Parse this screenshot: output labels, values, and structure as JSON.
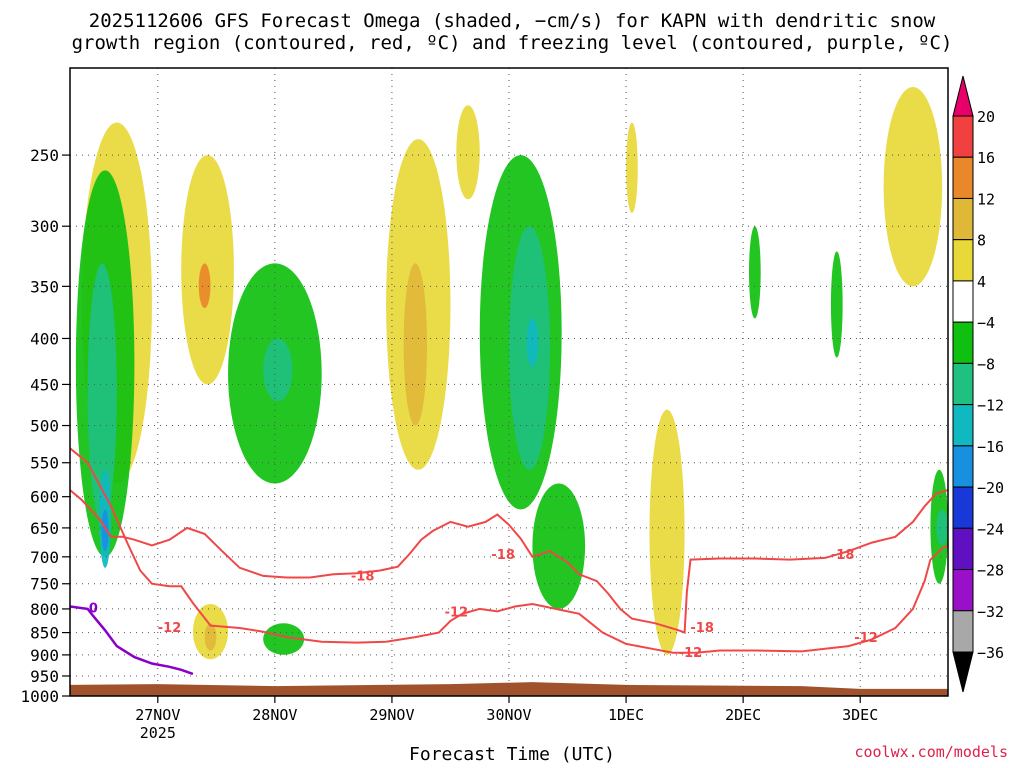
{
  "title_line1": "2025112606 GFS Forecast Omega (shaded, −cm/s) for KAPN with dendritic snow",
  "title_line2": "growth region (contoured, red, ºC) and freezing level (contoured, purple, ºC)",
  "xlabel": "Forecast Time (UTC)",
  "credit": "coolwx.com/models",
  "colors": {
    "ground": "#a0522d",
    "dgz_contour": "#f04848",
    "freezing_contour": "#8a00c8",
    "grid": "#555555"
  },
  "chart_data": {
    "type": "heatmap",
    "y_axis": {
      "label": "",
      "scale": "log-pressure",
      "ylim": [
        1000,
        200
      ],
      "ticks": [
        250,
        300,
        350,
        400,
        450,
        500,
        550,
        600,
        650,
        700,
        750,
        800,
        850,
        900,
        950,
        1000
      ]
    },
    "x_axis": {
      "ticks": [
        "27NOV",
        "28NOV",
        "29NOV",
        "30NOV",
        "1DEC",
        "2DEC",
        "3DEC"
      ],
      "sublabel": "2025"
    },
    "colorbar": {
      "levels": [
        "20",
        "16",
        "12",
        "8",
        "4",
        "−4",
        "−8",
        "−12",
        "−16",
        "−20",
        "−24",
        "−28",
        "−32",
        "−36"
      ],
      "colors": [
        "#e8006a",
        "#f04040",
        "#e8882a",
        "#e0b838",
        "#e8d838",
        "#ffffff",
        "#10c010",
        "#20c080",
        "#10b8c0",
        "#1890e0",
        "#1838d8",
        "#6010c0",
        "#9a10c8",
        "#a8a8a8",
        "#000000"
      ]
    },
    "contour_labels": {
      "dgz": [
        "-18",
        "-18",
        "-18",
        "-18",
        "-12",
        "-12",
        "-12",
        "-12"
      ],
      "freezing": [
        "0"
      ]
    },
    "contours": {
      "minus18": [
        [
          26.25,
          590
        ],
        [
          26.35,
          605
        ],
        [
          26.5,
          635
        ],
        [
          26.6,
          665
        ],
        [
          26.7,
          665
        ],
        [
          26.8,
          670
        ],
        [
          26.95,
          680
        ],
        [
          27.1,
          670
        ],
        [
          27.25,
          650
        ],
        [
          27.4,
          660
        ],
        [
          27.55,
          690
        ],
        [
          27.7,
          720
        ],
        [
          27.9,
          735
        ],
        [
          28.1,
          738
        ],
        [
          28.3,
          738
        ],
        [
          28.5,
          732
        ],
        [
          28.7,
          730
        ],
        [
          28.9,
          725
        ],
        [
          29.05,
          718
        ],
        [
          29.15,
          695
        ],
        [
          29.25,
          670
        ],
        [
          29.35,
          655
        ],
        [
          29.5,
          640
        ],
        [
          29.65,
          648
        ],
        [
          29.8,
          640
        ],
        [
          29.9,
          628
        ],
        [
          30.0,
          645
        ],
        [
          30.1,
          668
        ],
        [
          30.2,
          700
        ],
        [
          30.35,
          690
        ],
        [
          30.5,
          710
        ],
        [
          30.6,
          732
        ],
        [
          30.75,
          745
        ],
        [
          30.85,
          770
        ],
        [
          30.95,
          800
        ],
        [
          31.05,
          820
        ],
        [
          31.25,
          830
        ],
        [
          31.45,
          845
        ],
        [
          31.5,
          850
        ],
        [
          31.52,
          765
        ],
        [
          31.55,
          705
        ],
        [
          31.8,
          703
        ],
        [
          32.1,
          703
        ],
        [
          32.4,
          705
        ],
        [
          32.7,
          702
        ],
        [
          32.9,
          690
        ],
        [
          33.1,
          675
        ],
        [
          33.3,
          665
        ],
        [
          33.45,
          640
        ],
        [
          33.55,
          615
        ],
        [
          33.65,
          595
        ],
        [
          33.75,
          590
        ]
      ],
      "minus12": [
        [
          26.25,
          530
        ],
        [
          26.4,
          550
        ],
        [
          26.6,
          615
        ],
        [
          26.75,
          680
        ],
        [
          26.85,
          725
        ],
        [
          26.95,
          750
        ],
        [
          27.1,
          755
        ],
        [
          27.2,
          755
        ],
        [
          27.3,
          788
        ],
        [
          27.45,
          835
        ],
        [
          27.7,
          840
        ],
        [
          27.9,
          848
        ],
        [
          28.1,
          860
        ],
        [
          28.4,
          870
        ],
        [
          28.7,
          872
        ],
        [
          28.95,
          870
        ],
        [
          29.2,
          860
        ],
        [
          29.4,
          850
        ],
        [
          29.5,
          825
        ],
        [
          29.6,
          810
        ],
        [
          29.75,
          800
        ],
        [
          29.9,
          805
        ],
        [
          30.05,
          795
        ],
        [
          30.2,
          790
        ],
        [
          30.4,
          800
        ],
        [
          30.6,
          810
        ],
        [
          30.8,
          850
        ],
        [
          31.0,
          875
        ],
        [
          31.2,
          885
        ],
        [
          31.4,
          895
        ],
        [
          31.6,
          895
        ],
        [
          31.8,
          890
        ],
        [
          32.1,
          890
        ],
        [
          32.5,
          892
        ],
        [
          32.9,
          880
        ],
        [
          33.1,
          865
        ],
        [
          33.3,
          840
        ],
        [
          33.45,
          800
        ],
        [
          33.55,
          745
        ],
        [
          33.6,
          705
        ],
        [
          33.7,
          685
        ],
        [
          33.75,
          680
        ]
      ],
      "freezing": [
        [
          26.25,
          795
        ],
        [
          26.4,
          800
        ],
        [
          26.45,
          815
        ],
        [
          26.55,
          845
        ],
        [
          26.65,
          880
        ],
        [
          26.8,
          905
        ],
        [
          26.95,
          920
        ],
        [
          27.1,
          928
        ],
        [
          27.2,
          935
        ],
        [
          27.3,
          945
        ]
      ]
    },
    "omega_blobs": [
      {
        "c": 4,
        "x": [
          26.35,
          26.95
        ],
        "p": [
          230,
          580
        ]
      },
      {
        "c": -8,
        "x": [
          26.3,
          26.8
        ],
        "p": [
          260,
          700
        ]
      },
      {
        "c": -12,
        "x": [
          26.4,
          26.65
        ],
        "p": [
          330,
          640
        ]
      },
      {
        "c": -16,
        "x": [
          26.5,
          26.6
        ],
        "p": [
          560,
          720
        ]
      },
      {
        "c": -20,
        "x": [
          26.52,
          26.58
        ],
        "p": [
          620,
          690
        ]
      },
      {
        "c": 4,
        "x": [
          27.2,
          27.65
        ],
        "p": [
          250,
          450
        ]
      },
      {
        "c": 12,
        "x": [
          27.35,
          27.45
        ],
        "p": [
          330,
          370
        ]
      },
      {
        "c": -8,
        "x": [
          27.6,
          28.4
        ],
        "p": [
          330,
          580
        ]
      },
      {
        "c": -12,
        "x": [
          27.9,
          28.15
        ],
        "p": [
          400,
          470
        ]
      },
      {
        "c": 4,
        "x": [
          27.3,
          27.6
        ],
        "p": [
          790,
          910
        ]
      },
      {
        "c": 8,
        "x": [
          27.4,
          27.5
        ],
        "p": [
          830,
          890
        ]
      },
      {
        "c": -8,
        "x": [
          27.9,
          28.25
        ],
        "p": [
          830,
          900
        ]
      },
      {
        "c": 4,
        "x": [
          28.95,
          29.5
        ],
        "p": [
          240,
          560
        ]
      },
      {
        "c": 8,
        "x": [
          29.1,
          29.3
        ],
        "p": [
          330,
          500
        ]
      },
      {
        "c": 4,
        "x": [
          29.55,
          29.75
        ],
        "p": [
          220,
          280
        ]
      },
      {
        "c": -8,
        "x": [
          29.75,
          30.45
        ],
        "p": [
          250,
          620
        ]
      },
      {
        "c": -12,
        "x": [
          30.0,
          30.35
        ],
        "p": [
          300,
          560
        ]
      },
      {
        "c": -16,
        "x": [
          30.15,
          30.25
        ],
        "p": [
          380,
          430
        ]
      },
      {
        "c": -8,
        "x": [
          30.2,
          30.65
        ],
        "p": [
          580,
          800
        ]
      },
      {
        "c": 4,
        "x": [
          31.2,
          31.5
        ],
        "p": [
          480,
          900
        ]
      },
      {
        "c": 4,
        "x": [
          31.0,
          31.1
        ],
        "p": [
          230,
          290
        ]
      },
      {
        "c": -8,
        "x": [
          32.05,
          32.15
        ],
        "p": [
          300,
          380
        ]
      },
      {
        "c": -8,
        "x": [
          32.75,
          32.85
        ],
        "p": [
          320,
          420
        ]
      },
      {
        "c": 4,
        "x": [
          33.2,
          33.7
        ],
        "p": [
          210,
          350
        ]
      },
      {
        "c": -8,
        "x": [
          33.6,
          33.75
        ],
        "p": [
          560,
          750
        ]
      },
      {
        "c": -12,
        "x": [
          33.65,
          33.75
        ],
        "p": [
          620,
          680
        ]
      }
    ]
  }
}
